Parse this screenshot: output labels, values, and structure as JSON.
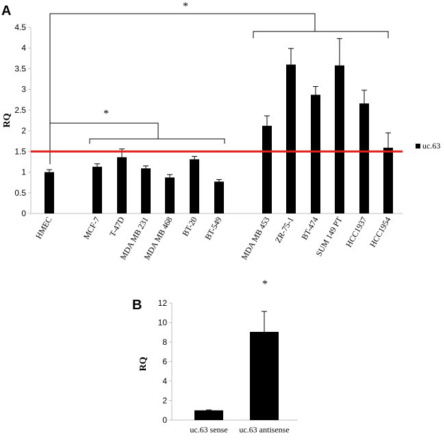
{
  "chart_data": [
    {
      "panel": "A",
      "type": "bar",
      "ylabel": "RQ",
      "ylim": [
        0,
        4.5
      ],
      "yticks": [
        "0",
        "0.5",
        "1",
        "1.5",
        "2",
        "2.5",
        "3",
        "3.5",
        "4",
        "4.5"
      ],
      "categories": [
        "HMEC",
        "MCF-7",
        "T-47D",
        "MDA MB 231",
        "MDA MB 468",
        "BT-20",
        "BT-549",
        "MDA MB 453",
        "ZR-75-1",
        "BT-474",
        "SUM 149 PT",
        "HCC1937",
        "HCC1954"
      ],
      "series": [
        {
          "name": "uc.63",
          "color": "#000000",
          "values": [
            1.0,
            1.13,
            1.36,
            1.09,
            0.87,
            1.31,
            0.77,
            2.12,
            3.6,
            2.87,
            3.58,
            2.66,
            1.59
          ],
          "errors": [
            0.06,
            0.07,
            0.2,
            0.06,
            0.07,
            0.07,
            0.05,
            0.24,
            0.39,
            0.2,
            0.65,
            0.32,
            0.36
          ]
        }
      ],
      "reference_line": {
        "value": 1.5,
        "color": "#e0201b"
      },
      "legend": {
        "label": "uc.63",
        "placement": "right"
      },
      "annotations": [
        "*",
        "*"
      ]
    },
    {
      "panel": "B",
      "type": "bar",
      "ylabel": "RQ",
      "ylim": [
        0,
        12
      ],
      "yticks": [
        "0",
        "2",
        "4",
        "6",
        "8",
        "10",
        "12"
      ],
      "categories": [
        "uc.63 sense",
        "uc.63 antisense"
      ],
      "series": [
        {
          "name": "uc.63",
          "color": "#000000",
          "values": [
            1.0,
            9.05
          ],
          "errors": [
            0.05,
            2.1
          ]
        }
      ],
      "annotations": [
        "*"
      ]
    }
  ]
}
